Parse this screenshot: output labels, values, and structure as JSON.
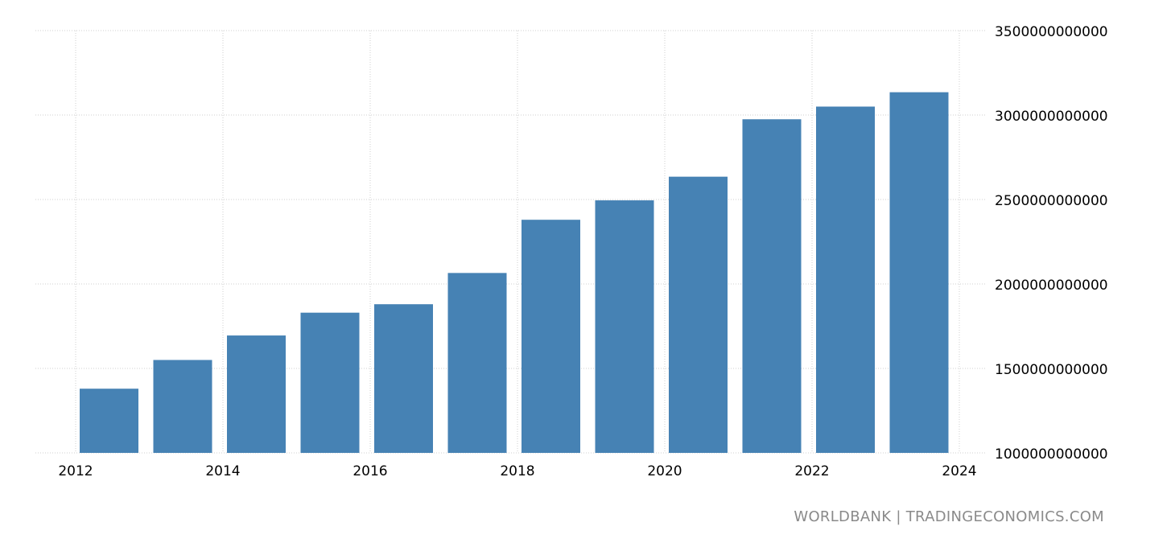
{
  "chart_data": {
    "type": "bar",
    "categories": [
      "2012",
      "2013",
      "2014",
      "2015",
      "2016",
      "2017",
      "2018",
      "2019",
      "2020",
      "2021",
      "2022",
      "2023"
    ],
    "values": [
      1380000000000,
      1550000000000,
      1695000000000,
      1830000000000,
      1880000000000,
      2065000000000,
      2380000000000,
      2495000000000,
      2635000000000,
      2975000000000,
      3050000000000,
      3135000000000
    ],
    "x_ticks": [
      "2012",
      "2014",
      "2016",
      "2018",
      "2020",
      "2022",
      "2024"
    ],
    "y_ticks": [
      "3500000000000",
      "3000000000000",
      "2500000000000",
      "2000000000000",
      "1500000000000",
      "1000000000000"
    ],
    "ylim": [
      1000000000000,
      3500000000000
    ],
    "xlim": [
      2011.5,
      2024
    ],
    "grid": true,
    "y_axis_side": "right",
    "bar_color": "#4682b4",
    "grid_color": "#cfcfcf"
  },
  "source": "WORLDBANK | TRADINGECONOMICS.COM"
}
